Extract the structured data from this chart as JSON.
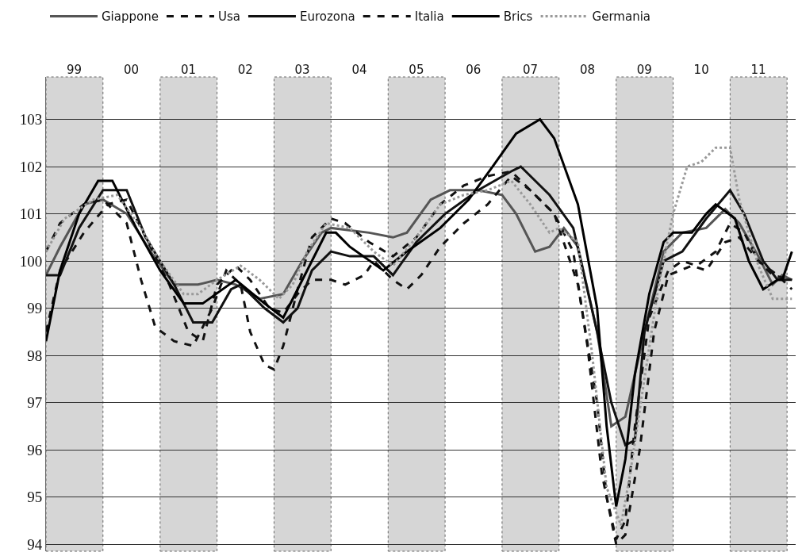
{
  "chart_data": {
    "type": "line",
    "xlim": [
      "1999-01-01",
      "2012-02-25"
    ],
    "ylim": [
      93.85,
      103.9
    ],
    "xticks": [
      {
        "value": "1999-07-01",
        "label": "99"
      },
      {
        "value": "2000-07-01",
        "label": "00"
      },
      {
        "value": "2001-07-01",
        "label": "01"
      },
      {
        "value": "2002-07-01",
        "label": "02"
      },
      {
        "value": "2003-07-01",
        "label": "03"
      },
      {
        "value": "2004-07-01",
        "label": "04"
      },
      {
        "value": "2005-07-01",
        "label": "05"
      },
      {
        "value": "2006-07-01",
        "label": "06"
      },
      {
        "value": "2007-07-01",
        "label": "07"
      },
      {
        "value": "2008-07-01",
        "label": "08"
      },
      {
        "value": "2009-07-01",
        "label": "09"
      },
      {
        "value": "2010-07-01",
        "label": "10"
      },
      {
        "value": "2011-07-01",
        "label": "11"
      }
    ],
    "yticks": [
      94,
      95,
      96,
      97,
      98,
      99,
      100,
      101,
      102,
      103
    ],
    "grid": "y",
    "legend": "top",
    "marker": "none",
    "bands": [
      {
        "axis": "x",
        "from": "1999-01-01",
        "to": "2000-01-01",
        "color": "#d6d6d6"
      },
      {
        "axis": "x",
        "from": "2001-01-01",
        "to": "2002-01-01",
        "color": "#d6d6d6"
      },
      {
        "axis": "x",
        "from": "2003-01-01",
        "to": "2004-01-01",
        "color": "#d6d6d6"
      },
      {
        "axis": "x",
        "from": "2005-01-01",
        "to": "2006-01-01",
        "color": "#d6d6d6"
      },
      {
        "axis": "x",
        "from": "2007-01-01",
        "to": "2008-01-01",
        "color": "#d6d6d6"
      },
      {
        "axis": "x",
        "from": "2009-01-01",
        "to": "2010-01-01",
        "color": "#d6d6d6"
      },
      {
        "axis": "x",
        "from": "2011-01-01",
        "to": "2012-01-01",
        "color": "#d6d6d6"
      }
    ],
    "series": [
      {
        "name": "Giappone",
        "color": "#555555",
        "line_style": "solid",
        "x": [
          "1999-01",
          "1999-04",
          "1999-09",
          "2000-01",
          "2000-06",
          "2000-11",
          "2001-04",
          "2001-09",
          "2002-01",
          "2002-05",
          "2002-10",
          "2003-03",
          "2003-07",
          "2003-11",
          "2004-01",
          "2004-09",
          "2005-02",
          "2005-05",
          "2005-10",
          "2006-02",
          "2006-08",
          "2007-01",
          "2007-04",
          "2007-08",
          "2007-11",
          "2008-02",
          "2008-05",
          "2008-09",
          "2008-12",
          "2009-03",
          "2009-07",
          "2009-11",
          "2010-03",
          "2010-08",
          "2010-12",
          "2011-03",
          "2011-07",
          "2011-10",
          "2011-12",
          "2012-02"
        ],
        "values": [
          99.7,
          100.3,
          101.2,
          101.3,
          101.0,
          100.2,
          99.5,
          99.5,
          99.6,
          99.5,
          99.2,
          99.3,
          100.0,
          100.6,
          100.7,
          100.6,
          100.5,
          100.6,
          101.3,
          101.5,
          101.5,
          101.4,
          101.0,
          100.2,
          100.3,
          100.7,
          100.3,
          98.5,
          96.5,
          96.7,
          98.5,
          100.2,
          100.6,
          100.7,
          101.1,
          100.8,
          100.1,
          99.5,
          99.7,
          99.6
        ]
      },
      {
        "name": "Usa",
        "color": "#111111",
        "line_style": "dashed",
        "x": [
          "1999-01",
          "1999-04",
          "1999-09",
          "2000-01",
          "2000-06",
          "2000-09",
          "2000-12",
          "2001-04",
          "2001-08",
          "2001-12",
          "2002-03",
          "2002-06",
          "2002-08",
          "2002-11",
          "2003-01",
          "2003-03",
          "2003-06",
          "2003-09",
          "2004-01",
          "2004-04",
          "2004-09",
          "2005-02",
          "2005-07",
          "2005-12",
          "2006-05",
          "2006-10",
          "2007-03",
          "2007-07",
          "2007-12",
          "2008-05",
          "2008-09",
          "2008-11",
          "2009-01",
          "2009-03",
          "2009-05",
          "2009-08",
          "2009-12",
          "2010-03",
          "2010-06",
          "2010-10",
          "2011-01",
          "2011-04",
          "2011-07",
          "2011-11",
          "2012-02"
        ],
        "values": [
          100.2,
          100.8,
          101.2,
          101.3,
          100.8,
          99.6,
          98.6,
          98.3,
          98.2,
          99.0,
          99.8,
          99.5,
          98.5,
          97.8,
          97.7,
          98.2,
          99.4,
          100.5,
          100.9,
          100.8,
          100.4,
          100.1,
          100.5,
          101.2,
          101.6,
          101.8,
          101.9,
          101.5,
          101.0,
          99.5,
          97.0,
          95.0,
          94.1,
          94.5,
          96.5,
          98.8,
          99.8,
          100.0,
          99.9,
          100.2,
          100.8,
          100.6,
          100.0,
          99.7,
          99.4
        ]
      },
      {
        "name": "Eurozona",
        "color": "#111111",
        "line_style": "solid",
        "x": [
          "1999-01",
          "1999-04",
          "1999-08",
          "2000-01",
          "2000-06",
          "2000-10",
          "2001-04",
          "2001-08",
          "2001-12",
          "2002-04",
          "2002-06",
          "2002-11",
          "2003-03",
          "2003-06",
          "2003-09",
          "2004-01",
          "2004-05",
          "2004-10",
          "2005-02",
          "2005-07",
          "2006-01",
          "2006-08",
          "2007-03",
          "2007-05",
          "2007-11",
          "2008-04",
          "2008-09",
          "2008-12",
          "2009-03",
          "2009-05",
          "2009-07",
          "2009-11",
          "2010-03",
          "2010-08",
          "2011-01",
          "2011-04",
          "2011-08",
          "2011-11",
          "2012-02"
        ],
        "values": [
          99.7,
          99.7,
          100.7,
          101.5,
          101.5,
          100.5,
          99.5,
          98.7,
          98.7,
          99.4,
          99.5,
          99.0,
          98.7,
          99.0,
          99.8,
          100.2,
          100.1,
          100.1,
          99.7,
          100.4,
          101.0,
          101.5,
          101.9,
          102.0,
          101.4,
          100.7,
          98.5,
          97.0,
          96.1,
          96.2,
          98.5,
          100.0,
          100.2,
          100.9,
          101.5,
          101.0,
          100.0,
          99.6,
          99.6
        ]
      },
      {
        "name": "Italia",
        "color": "#111111",
        "line_style": "dashed",
        "x": [
          "1999-01",
          "1999-04",
          "1999-09",
          "2000-02",
          "2000-06",
          "2000-10",
          "2001-03",
          "2001-07",
          "2001-10",
          "2002-01",
          "2002-05",
          "2002-08",
          "2002-12",
          "2003-03",
          "2003-06",
          "2003-09",
          "2004-01",
          "2004-04",
          "2004-08",
          "2004-10",
          "2005-02",
          "2005-05",
          "2005-08",
          "2005-12",
          "2006-05",
          "2006-10",
          "2007-03",
          "2007-07",
          "2007-12",
          "2008-04",
          "2008-07",
          "2008-10",
          "2009-01",
          "2009-03",
          "2009-06",
          "2009-09",
          "2009-12",
          "2010-05",
          "2010-08",
          "2010-12",
          "2011-03",
          "2011-07",
          "2011-10",
          "2012-02"
        ],
        "values": [
          98.5,
          99.8,
          100.6,
          101.2,
          101.3,
          100.5,
          99.5,
          98.5,
          98.3,
          99.5,
          99.9,
          99.6,
          99.0,
          98.9,
          99.3,
          99.6,
          99.6,
          99.5,
          99.7,
          100.0,
          99.6,
          99.4,
          99.7,
          100.3,
          100.8,
          101.2,
          101.8,
          101.5,
          101.0,
          100.2,
          98.2,
          95.5,
          94.0,
          94.2,
          96.0,
          98.5,
          99.7,
          99.9,
          99.8,
          100.4,
          100.5,
          100.0,
          99.7,
          99.6
        ]
      },
      {
        "name": "Brics",
        "color": "#000000",
        "line_style": "solid",
        "x": [
          "1999-01",
          "1999-04",
          "1999-08",
          "1999-12",
          "2000-03",
          "2000-08",
          "2001-01",
          "2001-06",
          "2001-10",
          "2002-05",
          "2002-11",
          "2003-03",
          "2003-08",
          "2003-12",
          "2004-02",
          "2004-05",
          "2004-12",
          "2005-05",
          "2005-12",
          "2006-06",
          "2006-11",
          "2007-04",
          "2007-09",
          "2007-12",
          "2008-05",
          "2008-09",
          "2008-11",
          "2009-01",
          "2009-03",
          "2009-05",
          "2009-08",
          "2009-11",
          "2010-01",
          "2010-05",
          "2010-08",
          "2010-10",
          "2011-02",
          "2011-05",
          "2011-08",
          "2011-11",
          "2011-12",
          "2012-02"
        ],
        "values": [
          98.3,
          99.8,
          101.0,
          101.7,
          101.7,
          100.7,
          99.8,
          99.1,
          99.1,
          99.6,
          99.1,
          98.8,
          99.8,
          100.6,
          100.6,
          100.3,
          99.8,
          100.2,
          100.7,
          101.3,
          102.0,
          102.7,
          103.0,
          102.6,
          101.2,
          99.0,
          96.5,
          94.8,
          95.8,
          97.6,
          99.3,
          100.4,
          100.6,
          100.6,
          101.0,
          101.2,
          100.9,
          100.0,
          99.4,
          99.6,
          99.6,
          100.2
        ]
      },
      {
        "name": "Germania",
        "color": "#999999",
        "line_style": "dotted",
        "x": [
          "1999-01",
          "1999-05",
          "1999-11",
          "2000-04",
          "2000-09",
          "2001-01",
          "2001-06",
          "2001-09",
          "2002-01",
          "2002-06",
          "2002-10",
          "2003-02",
          "2003-05",
          "2003-08",
          "2003-12",
          "2004-05",
          "2004-10",
          "2005-02",
          "2005-07",
          "2005-12",
          "2006-05",
          "2006-10",
          "2007-03",
          "2007-07",
          "2007-11",
          "2008-01",
          "2008-05",
          "2008-08",
          "2008-11",
          "2009-02",
          "2009-04",
          "2009-07",
          "2009-10",
          "2009-12",
          "2010-01",
          "2010-04",
          "2010-07",
          "2010-10",
          "2011-01",
          "2011-03",
          "2011-07",
          "2011-10",
          "2012-02"
        ],
        "values": [
          100.2,
          100.9,
          101.3,
          101.4,
          100.7,
          100.0,
          99.3,
          99.3,
          99.6,
          99.9,
          99.6,
          99.2,
          99.5,
          100.2,
          100.8,
          100.7,
          100.2,
          99.9,
          100.5,
          101.2,
          101.4,
          101.5,
          101.7,
          101.2,
          100.6,
          100.7,
          100.4,
          98.0,
          95.2,
          94.4,
          95.5,
          97.5,
          99.5,
          100.5,
          101.0,
          102.0,
          102.1,
          102.4,
          102.4,
          101.3,
          99.9,
          99.2,
          99.2
        ]
      }
    ]
  }
}
